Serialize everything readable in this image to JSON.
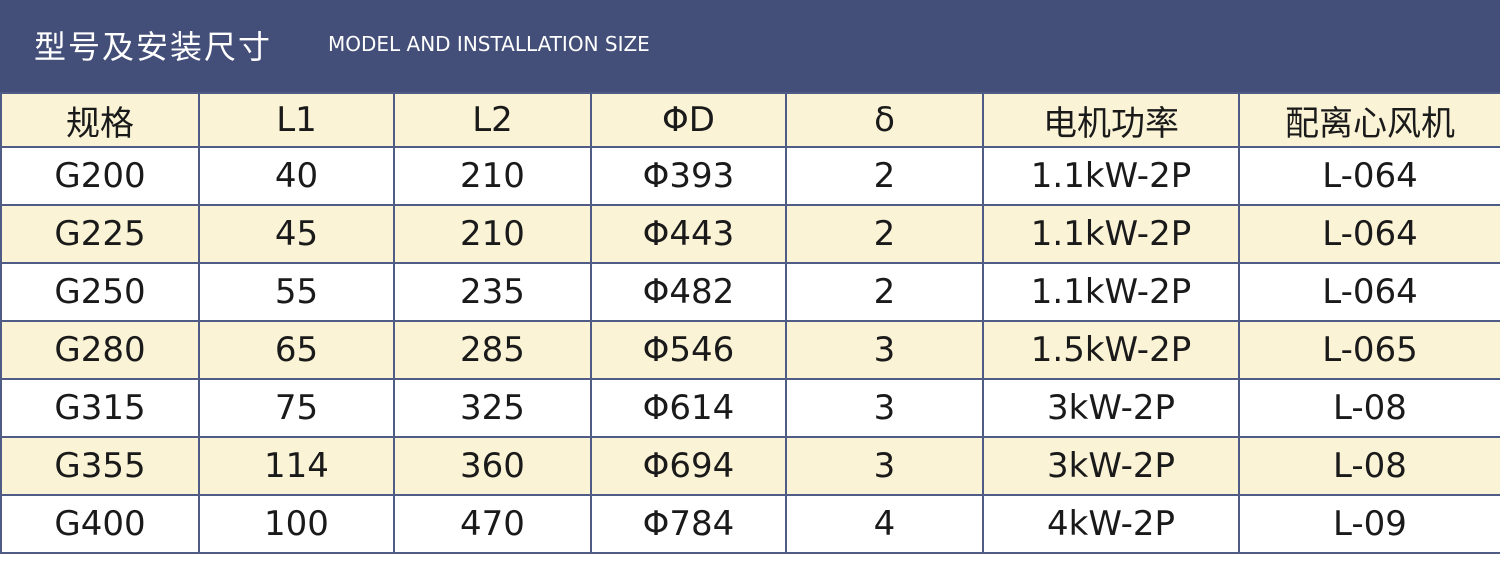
{
  "header": {
    "title": "型号及安装尺寸",
    "subtitle": "MODEL AND INSTALLATION SIZE"
  },
  "table": {
    "columns": [
      "规格",
      "L1",
      "L2",
      "ΦD",
      "δ",
      "电机功率",
      "配离心风机"
    ],
    "rows": [
      [
        "G200",
        "40",
        "210",
        "Φ393",
        "2",
        "1.1kW-2P",
        "L-064"
      ],
      [
        "G225",
        "45",
        "210",
        "Φ443",
        "2",
        "1.1kW-2P",
        "L-064"
      ],
      [
        "G250",
        "55",
        "235",
        "Φ482",
        "2",
        "1.1kW-2P",
        "L-064"
      ],
      [
        "G280",
        "65",
        "285",
        "Φ546",
        "3",
        "1.5kW-2P",
        "L-065"
      ],
      [
        "G315",
        "75",
        "325",
        "Φ614",
        "3",
        "3kW-2P",
        "L-08"
      ],
      [
        "G355",
        "114",
        "360",
        "Φ694",
        "3",
        "3kW-2P",
        "L-08"
      ],
      [
        "G400",
        "100",
        "470",
        "Φ784",
        "4",
        "4kW-2P",
        "L-09"
      ]
    ]
  }
}
